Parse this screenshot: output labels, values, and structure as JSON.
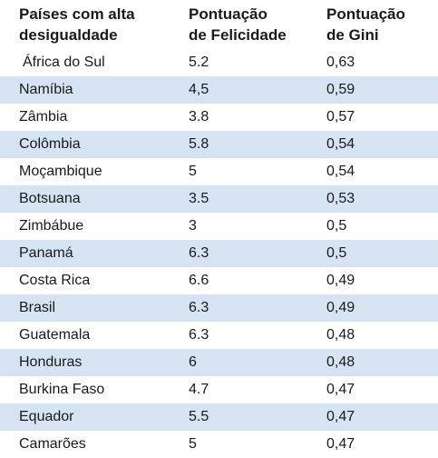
{
  "headers": {
    "country": [
      "Países com alta",
      "desigualdade"
    ],
    "happiness": [
      "Pontuação",
      "de Felicidade"
    ],
    "gini": [
      "Pontuação",
      "de Gini"
    ]
  },
  "rows": [
    {
      "country": "África do Sul",
      "happiness": "5.2",
      "gini": "0,63"
    },
    {
      "country": "Namíbia",
      "happiness": "4,5",
      "gini": "0,59"
    },
    {
      "country": "Zâmbia",
      "happiness": "3.8",
      "gini": "0,57"
    },
    {
      "country": "Colômbia",
      "happiness": "5.8",
      "gini": "0,54"
    },
    {
      "country": "Moçambique",
      "happiness": "5",
      "gini": "0,54"
    },
    {
      "country": "Botsuana",
      "happiness": "3.5",
      "gini": "0,53"
    },
    {
      "country": "Zimbábue",
      "happiness": "3",
      "gini": "0,5"
    },
    {
      "country": "Panamá",
      "happiness": "6.3",
      "gini": "0,5"
    },
    {
      "country": "Costa Rica",
      "happiness": "6.6",
      "gini": "0,49"
    },
    {
      "country": "Brasil",
      "happiness": "6.3",
      "gini": "0,49"
    },
    {
      "country": "Guatemala",
      "happiness": "6.3",
      "gini": "0,48"
    },
    {
      "country": "Honduras",
      "happiness": "6",
      "gini": "0,48"
    },
    {
      "country": "Burkina Faso",
      "happiness": "4.7",
      "gini": "0,47"
    },
    {
      "country": "Equador",
      "happiness": "5.5",
      "gini": "0,47"
    },
    {
      "country": "Camarões",
      "happiness": "5",
      "gini": "0,47"
    }
  ],
  "colors": {
    "stripe": "#d6e3f2",
    "background": "#ffffff",
    "text": "#1a1a1a"
  }
}
